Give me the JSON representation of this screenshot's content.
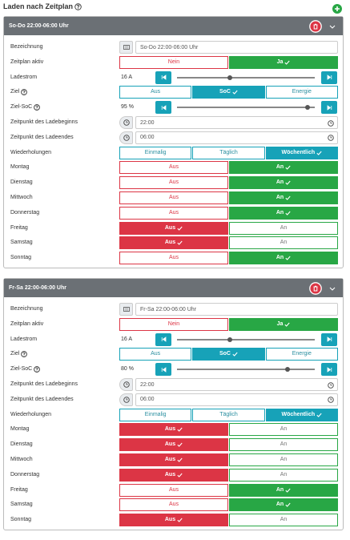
{
  "header": {
    "title": "Laden nach Zeitplan"
  },
  "schedules": [
    {
      "title": "So-Do 22:00-06:00 Uhr",
      "rows": [
        {
          "label": "Bezeichnung",
          "kind": "text",
          "value": "So-Do 22:00-06:00 Uhr"
        },
        {
          "label": "Zeitplan aktiv",
          "kind": "toggle",
          "options": [
            "Nein",
            "Ja"
          ],
          "selected": 1
        },
        {
          "label": "Ladestrom",
          "kind": "slider",
          "value": "16 A"
        },
        {
          "label": "Ziel",
          "help": true,
          "kind": "choice",
          "options": [
            "Aus",
            "SoC",
            "Energie"
          ],
          "selected": 1
        },
        {
          "label": "Ziel-SoC",
          "help": true,
          "kind": "slider",
          "value": "95 %"
        },
        {
          "label": "Zeitpunkt des Ladebeginns",
          "kind": "time",
          "value": "22:00"
        },
        {
          "label": "Zeitpunkt des Ladeendes",
          "kind": "time",
          "value": "06:00"
        },
        {
          "label": "Wiederholungen",
          "kind": "choice",
          "options": [
            "Einmalig",
            "Täglich",
            "Wöchentlich"
          ],
          "selected": 2
        },
        {
          "label": "Montag",
          "kind": "toggle",
          "options": [
            "Aus",
            "An"
          ],
          "selected": 1
        },
        {
          "label": "Dienstag",
          "kind": "toggle",
          "options": [
            "Aus",
            "An"
          ],
          "selected": 1
        },
        {
          "label": "Mittwoch",
          "kind": "toggle",
          "options": [
            "Aus",
            "An"
          ],
          "selected": 1
        },
        {
          "label": "Donnerstag",
          "kind": "toggle",
          "options": [
            "Aus",
            "An"
          ],
          "selected": 1
        },
        {
          "label": "Freitag",
          "kind": "toggle",
          "options": [
            "Aus",
            "An"
          ],
          "selected": 0
        },
        {
          "label": "Samstag",
          "kind": "toggle",
          "options": [
            "Aus",
            "An"
          ],
          "selected": 0
        },
        {
          "label": "Sonntag",
          "kind": "toggle",
          "options": [
            "Aus",
            "An"
          ],
          "selected": 1
        }
      ]
    },
    {
      "title": "Fr-Sa 22:00-06:00 Uhr",
      "rows": [
        {
          "label": "Bezeichnung",
          "kind": "text",
          "value": "Fr-Sa 22:00-06:00 Uhr"
        },
        {
          "label": "Zeitplan aktiv",
          "kind": "toggle",
          "options": [
            "Nein",
            "Ja"
          ],
          "selected": 1
        },
        {
          "label": "Ladestrom",
          "kind": "slider",
          "value": "16 A"
        },
        {
          "label": "Ziel",
          "help": true,
          "kind": "choice",
          "options": [
            "Aus",
            "SoC",
            "Energie"
          ],
          "selected": 1
        },
        {
          "label": "Ziel-SoC",
          "help": true,
          "kind": "slider",
          "value": "80 %"
        },
        {
          "label": "Zeitpunkt des Ladebeginns",
          "kind": "time",
          "value": "22:00"
        },
        {
          "label": "Zeitpunkt des Ladeendes",
          "kind": "time",
          "value": "06:00"
        },
        {
          "label": "Wiederholungen",
          "kind": "choice",
          "options": [
            "Einmalig",
            "Täglich",
            "Wöchentlich"
          ],
          "selected": 2
        },
        {
          "label": "Montag",
          "kind": "toggle",
          "options": [
            "Aus",
            "An"
          ],
          "selected": 0
        },
        {
          "label": "Dienstag",
          "kind": "toggle",
          "options": [
            "Aus",
            "An"
          ],
          "selected": 0
        },
        {
          "label": "Mittwoch",
          "kind": "toggle",
          "options": [
            "Aus",
            "An"
          ],
          "selected": 0
        },
        {
          "label": "Donnerstag",
          "kind": "toggle",
          "options": [
            "Aus",
            "An"
          ],
          "selected": 0
        },
        {
          "label": "Freitag",
          "kind": "toggle",
          "options": [
            "Aus",
            "An"
          ],
          "selected": 1
        },
        {
          "label": "Samstag",
          "kind": "toggle",
          "options": [
            "Aus",
            "An"
          ],
          "selected": 1
        },
        {
          "label": "Sonntag",
          "kind": "toggle",
          "options": [
            "Aus",
            "An"
          ],
          "selected": 0
        }
      ]
    }
  ]
}
